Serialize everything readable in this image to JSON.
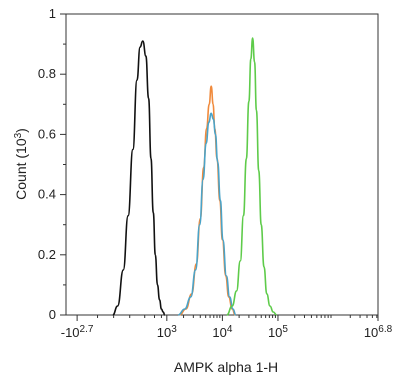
{
  "chart_data": {
    "type": "line",
    "title": "",
    "xlabel": "AMPK alpha 1-H",
    "ylabel": "Count (10^3)",
    "x_scale": "biexponential-log",
    "ylim": [
      0,
      1
    ],
    "grid": false,
    "legend": "none",
    "x_ticks": [
      {
        "base": "-10",
        "exp": "2.7",
        "value": -501
      },
      {
        "base": "10",
        "exp": "3",
        "value": 1000
      },
      {
        "base": "10",
        "exp": "4",
        "value": 10000
      },
      {
        "base": "10",
        "exp": "5",
        "value": 100000
      },
      {
        "base": "10",
        "exp": "6.8",
        "value": 6309573
      }
    ],
    "y_ticks": [
      {
        "label": "0",
        "value": 0
      },
      {
        "label": "0.2",
        "value": 0.2
      },
      {
        "label": "0.4",
        "value": 0.4
      },
      {
        "label": "0.6",
        "value": 0.6
      },
      {
        "label": "0.8",
        "value": 0.8
      },
      {
        "label": "1",
        "value": 1
      }
    ],
    "series": [
      {
        "color": "#111111",
        "x": [
          -10,
          50,
          120,
          180,
          240,
          290,
          330,
          370,
          420,
          470,
          520,
          570,
          620,
          680,
          740,
          800,
          860,
          920
        ],
        "y": [
          0.0,
          0.03,
          0.15,
          0.33,
          0.55,
          0.78,
          0.89,
          0.91,
          0.86,
          0.72,
          0.52,
          0.34,
          0.2,
          0.1,
          0.05,
          0.02,
          0.01,
          0.0
        ]
      },
      {
        "color": "#f08a3c",
        "x": [
          1700,
          2200,
          2800,
          3400,
          4000,
          4600,
          5200,
          5800,
          6300,
          6800,
          7300,
          8000,
          9000,
          10000,
          11500,
          13000,
          15000,
          17000
        ],
        "y": [
          0.0,
          0.02,
          0.07,
          0.17,
          0.32,
          0.49,
          0.62,
          0.7,
          0.76,
          0.7,
          0.62,
          0.52,
          0.38,
          0.25,
          0.13,
          0.06,
          0.02,
          0.0
        ]
      },
      {
        "color": "#4aa3c8",
        "x": [
          1600,
          2100,
          2700,
          3300,
          3900,
          4500,
          5100,
          5700,
          6300,
          6900,
          7500,
          8200,
          9200,
          10200,
          11800,
          13500,
          15500,
          17500
        ],
        "y": [
          0.0,
          0.02,
          0.06,
          0.15,
          0.3,
          0.45,
          0.57,
          0.64,
          0.67,
          0.65,
          0.6,
          0.51,
          0.38,
          0.25,
          0.13,
          0.06,
          0.02,
          0.0
        ]
      },
      {
        "color": "#5ecb4a",
        "x": [
          12000,
          15000,
          18000,
          21000,
          24000,
          27000,
          30000,
          32500,
          35000,
          38000,
          41000,
          45000,
          50000,
          56000,
          63000,
          72000,
          82000,
          95000
        ],
        "y": [
          0.0,
          0.03,
          0.08,
          0.18,
          0.33,
          0.52,
          0.71,
          0.85,
          0.92,
          0.84,
          0.68,
          0.48,
          0.3,
          0.16,
          0.07,
          0.03,
          0.01,
          0.0
        ]
      }
    ]
  }
}
